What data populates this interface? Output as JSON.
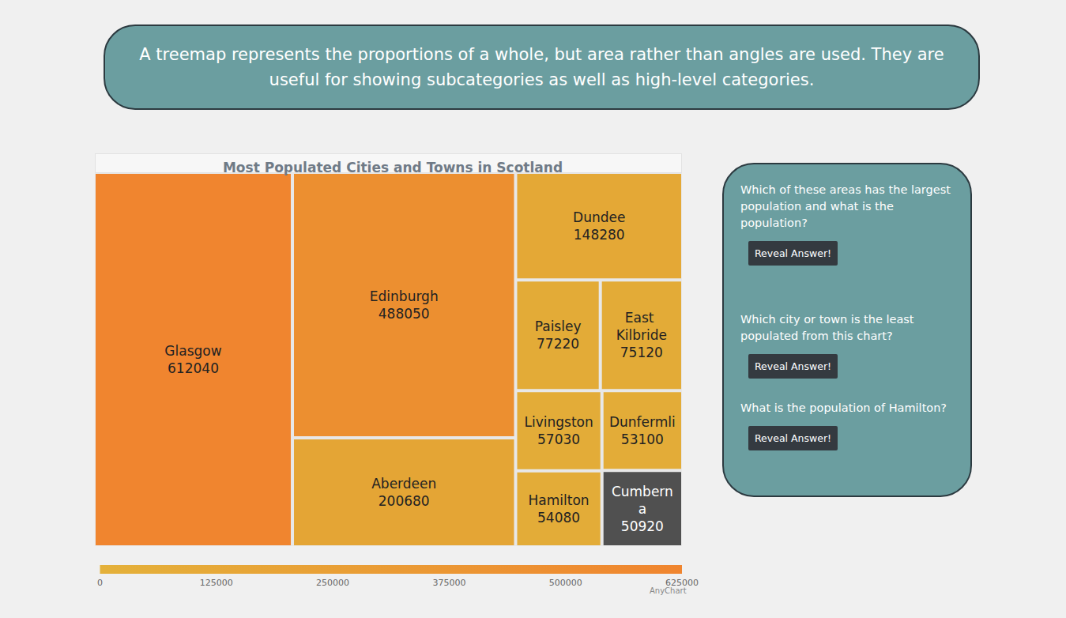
{
  "page": {
    "intro": "A treemap represents the proportions of a whole, but area rather than angles are used. They are useful for showing subcategories as well as high-level categories.",
    "questions": [
      {
        "text": "Which of these areas has the largest population and what is the population?",
        "button": "Reveal Answer!"
      },
      {
        "text": "Which city or town is the least populated from this chart?",
        "button": "Reveal Answer!"
      },
      {
        "text": "What is the population of Hamilton?",
        "button": "Reveal Answer!"
      }
    ]
  },
  "chart_data": {
    "type": "treemap",
    "title": "Most Populated Cities and Towns in Scotland",
    "categories": [
      "Glasgow",
      "Edinburgh",
      "Aberdeen",
      "Dundee",
      "Paisley",
      "East Kilbride",
      "Livingston",
      "Hamilton",
      "Dunfermli",
      "Cumberna"
    ],
    "values": [
      612040,
      488050,
      200680,
      148280,
      77220,
      75120,
      57030,
      54080,
      53100,
      50920
    ],
    "colors": [
      "#f0852f",
      "#ec8f30",
      "#e4a535",
      "#e4a836",
      "#e3ab37",
      "#e3ab37",
      "#e3ac38",
      "#e3ac38",
      "#e3ac38",
      "#505050"
    ],
    "data_labels": true,
    "colorbar": {
      "range": [
        0,
        625000
      ],
      "ticks": [
        0,
        125000,
        250000,
        375000,
        500000,
        625000
      ],
      "colors": [
        "#e4b13a",
        "#f0852f"
      ]
    },
    "credit": "AnyChart"
  }
}
